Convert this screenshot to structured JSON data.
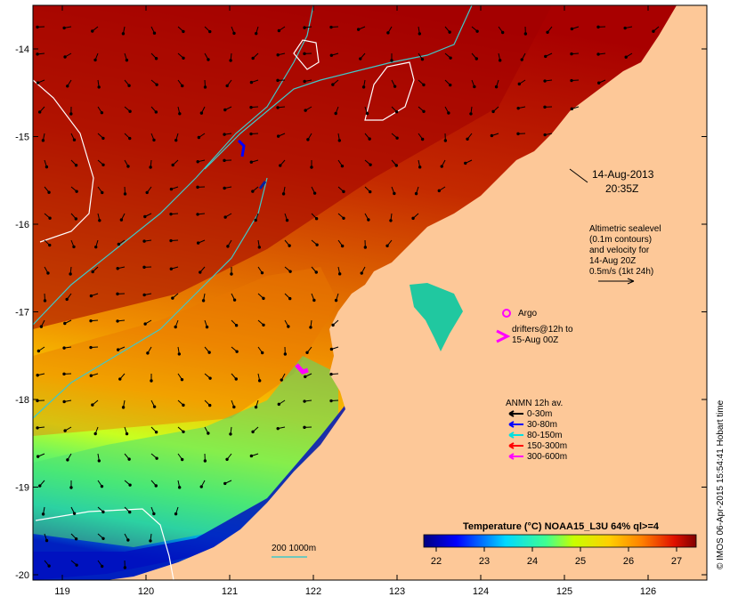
{
  "map": {
    "lon_ticks": [
      "119",
      "120",
      "121",
      "122",
      "123",
      "124",
      "125",
      "126"
    ],
    "lat_ticks": [
      "-14",
      "-15",
      "-16",
      "-17",
      "-18",
      "-19",
      "-20"
    ],
    "date_line1": "14-Aug-2013",
    "date_line2": "20:35Z",
    "altimetry_lines": [
      "Altimetric sealevel",
      "(0.1m contours)",
      "and velocity for",
      "14-Aug 20Z",
      "0.5m/s (1kt 24h)"
    ],
    "argo_label": "Argo",
    "drifters_lines": [
      "drifters@12h to",
      "15-Aug 00Z"
    ],
    "anmn_title": "ANMN 12h av.",
    "anmn_items": [
      {
        "label": "0-30m",
        "color": "#000000"
      },
      {
        "label": "30-80m",
        "color": "#0000ff"
      },
      {
        "label": "80-150m",
        "color": "#00e0e0"
      },
      {
        "label": "150-300m",
        "color": "#ff0000"
      },
      {
        "label": "300-600m",
        "color": "#ff00ff"
      }
    ],
    "depth_legend": "200  1000m",
    "colorbar_title": "Temperature (°C) NOAA15_L3U 64% ql>=4",
    "colorbar_ticks": [
      "22",
      "23",
      "24",
      "25",
      "26",
      "27"
    ],
    "credit": "© IMOS 06-Apr-2015 15:54:41 Hobart time",
    "colors": {
      "land": "#fdc898",
      "argo": "#ff00ff",
      "drifter": "#ff00ff",
      "contour_200": "#40c8c8",
      "contour_1000": "#ffffff"
    }
  }
}
